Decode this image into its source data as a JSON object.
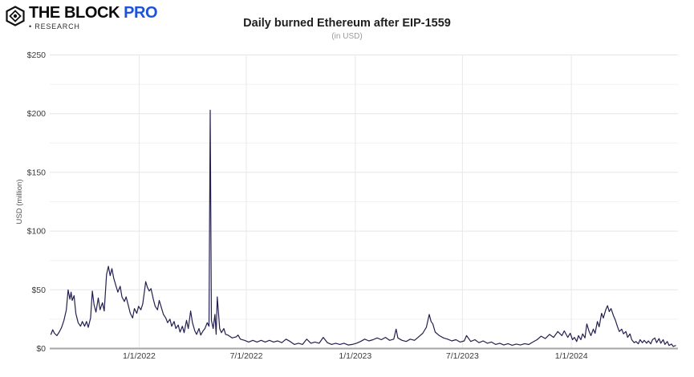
{
  "brand": {
    "name_part1": "THE BLOCK",
    "name_part2": "PRO",
    "tagline_bullet": "•",
    "tagline": "RESEARCH",
    "pro_color": "#1d53dc"
  },
  "chart": {
    "title": "Daily burned Ethereum after EIP-1559",
    "subtitle": "(in USD)"
  },
  "chart_data": {
    "type": "line",
    "title": "Daily burned Ethereum after EIP-1559",
    "subtitle": "(in USD)",
    "ylabel": "USD (million)",
    "ylim": [
      0,
      250
    ],
    "y_ticks": [
      "$0",
      "$50",
      "$100",
      "$150",
      "$200",
      "$250"
    ],
    "y_tick_values": [
      0,
      50,
      100,
      150,
      200,
      250
    ],
    "minor_grid_step": 25,
    "x_tick_labels": [
      "1/1/2022",
      "7/1/2022",
      "1/1/2023",
      "7/1/2023",
      "1/1/2024"
    ],
    "x_tick_dates": [
      "2022-01-01",
      "2022-07-01",
      "2023-01-01",
      "2023-07-01",
      "2024-01-01"
    ],
    "x_range": [
      "2021-08-03",
      "2024-06-29"
    ],
    "grid": true,
    "legend": "none",
    "line_color": "#23204f",
    "colors": {
      "major_grid": "#e5e5e5",
      "minor_grid": "#f1f1f1",
      "vertical_grid": "#e8e8e8",
      "axis_line": "#a6a6a6",
      "tick_label": "#3a3a3a",
      "axis_label": "#555555"
    },
    "series": [
      {
        "name": "Daily burned ETH (USD million)",
        "points": [
          [
            "2021-08-05",
            12
          ],
          [
            "2021-08-08",
            16
          ],
          [
            "2021-08-11",
            13
          ],
          [
            "2021-08-15",
            11
          ],
          [
            "2021-08-19",
            14
          ],
          [
            "2021-08-23",
            18
          ],
          [
            "2021-08-27",
            24
          ],
          [
            "2021-08-31",
            33
          ],
          [
            "2021-09-03",
            50
          ],
          [
            "2021-09-06",
            42
          ],
          [
            "2021-09-08",
            48
          ],
          [
            "2021-09-10",
            41
          ],
          [
            "2021-09-13",
            45
          ],
          [
            "2021-09-16",
            30
          ],
          [
            "2021-09-20",
            22
          ],
          [
            "2021-09-24",
            19
          ],
          [
            "2021-09-27",
            23
          ],
          [
            "2021-10-01",
            19
          ],
          [
            "2021-10-04",
            23
          ],
          [
            "2021-10-07",
            18
          ],
          [
            "2021-10-11",
            26
          ],
          [
            "2021-10-14",
            49
          ],
          [
            "2021-10-17",
            37
          ],
          [
            "2021-10-20",
            31
          ],
          [
            "2021-10-24",
            43
          ],
          [
            "2021-10-27",
            33
          ],
          [
            "2021-10-31",
            39
          ],
          [
            "2021-11-03",
            32
          ],
          [
            "2021-11-07",
            63
          ],
          [
            "2021-11-10",
            70
          ],
          [
            "2021-11-13",
            62
          ],
          [
            "2021-11-16",
            68
          ],
          [
            "2021-11-19",
            60
          ],
          [
            "2021-11-23",
            53
          ],
          [
            "2021-11-26",
            48
          ],
          [
            "2021-11-30",
            53
          ],
          [
            "2021-12-03",
            44
          ],
          [
            "2021-12-07",
            40
          ],
          [
            "2021-12-10",
            44
          ],
          [
            "2021-12-14",
            36
          ],
          [
            "2021-12-17",
            30
          ],
          [
            "2021-12-21",
            26
          ],
          [
            "2021-12-24",
            34
          ],
          [
            "2021-12-28",
            30
          ],
          [
            "2021-12-31",
            36
          ],
          [
            "2022-01-04",
            33
          ],
          [
            "2022-01-07",
            38
          ],
          [
            "2022-01-10",
            49
          ],
          [
            "2022-01-12",
            57
          ],
          [
            "2022-01-15",
            52
          ],
          [
            "2022-01-18",
            49
          ],
          [
            "2022-01-21",
            51
          ],
          [
            "2022-01-25",
            42
          ],
          [
            "2022-01-28",
            36
          ],
          [
            "2022-02-01",
            33
          ],
          [
            "2022-02-04",
            41
          ],
          [
            "2022-02-08",
            34
          ],
          [
            "2022-02-11",
            29
          ],
          [
            "2022-02-15",
            26
          ],
          [
            "2022-02-18",
            22
          ],
          [
            "2022-02-22",
            25
          ],
          [
            "2022-02-25",
            19
          ],
          [
            "2022-03-01",
            23
          ],
          [
            "2022-03-04",
            17
          ],
          [
            "2022-03-08",
            20
          ],
          [
            "2022-03-11",
            14
          ],
          [
            "2022-03-15",
            19
          ],
          [
            "2022-03-18",
            13.5
          ],
          [
            "2022-03-22",
            24
          ],
          [
            "2022-03-25",
            17
          ],
          [
            "2022-03-29",
            32
          ],
          [
            "2022-04-01",
            22
          ],
          [
            "2022-04-05",
            15
          ],
          [
            "2022-04-08",
            12
          ],
          [
            "2022-04-12",
            17
          ],
          [
            "2022-04-15",
            11.5
          ],
          [
            "2022-04-19",
            15
          ],
          [
            "2022-04-22",
            17
          ],
          [
            "2022-04-26",
            22
          ],
          [
            "2022-04-29",
            19
          ],
          [
            "2022-05-01",
            203
          ],
          [
            "2022-05-03",
            24
          ],
          [
            "2022-05-06",
            17
          ],
          [
            "2022-05-09",
            29
          ],
          [
            "2022-05-11",
            12
          ],
          [
            "2022-05-13",
            44
          ],
          [
            "2022-05-17",
            17
          ],
          [
            "2022-05-20",
            13.5
          ],
          [
            "2022-05-24",
            17
          ],
          [
            "2022-05-27",
            12
          ],
          [
            "2022-05-31",
            11.5
          ],
          [
            "2022-06-07",
            9
          ],
          [
            "2022-06-14",
            10
          ],
          [
            "2022-06-17",
            11.5
          ],
          [
            "2022-06-21",
            8
          ],
          [
            "2022-06-28",
            7
          ],
          [
            "2022-07-05",
            5.5
          ],
          [
            "2022-07-12",
            7
          ],
          [
            "2022-07-19",
            5.5
          ],
          [
            "2022-07-26",
            7
          ],
          [
            "2022-08-02",
            5.5
          ],
          [
            "2022-08-09",
            7
          ],
          [
            "2022-08-16",
            5.5
          ],
          [
            "2022-08-23",
            6.5
          ],
          [
            "2022-08-30",
            5
          ],
          [
            "2022-09-06",
            8
          ],
          [
            "2022-09-13",
            6
          ],
          [
            "2022-09-20",
            3.5
          ],
          [
            "2022-09-27",
            4.5
          ],
          [
            "2022-10-04",
            3.5
          ],
          [
            "2022-10-11",
            8
          ],
          [
            "2022-10-18",
            4.5
          ],
          [
            "2022-10-25",
            5.5
          ],
          [
            "2022-11-01",
            4.5
          ],
          [
            "2022-11-08",
            9.5
          ],
          [
            "2022-11-15",
            5
          ],
          [
            "2022-11-22",
            3.5
          ],
          [
            "2022-11-29",
            4.5
          ],
          [
            "2022-12-06",
            3.5
          ],
          [
            "2022-12-13",
            4.5
          ],
          [
            "2022-12-20",
            3
          ],
          [
            "2022-12-27",
            3.5
          ],
          [
            "2023-01-03",
            4.5
          ],
          [
            "2023-01-10",
            6
          ],
          [
            "2023-01-17",
            8
          ],
          [
            "2023-01-24",
            6.5
          ],
          [
            "2023-01-31",
            7.5
          ],
          [
            "2023-02-07",
            9
          ],
          [
            "2023-02-14",
            7.5
          ],
          [
            "2023-02-21",
            9.5
          ],
          [
            "2023-02-28",
            7
          ],
          [
            "2023-03-07",
            8
          ],
          [
            "2023-03-11",
            16.5
          ],
          [
            "2023-03-14",
            9
          ],
          [
            "2023-03-21",
            7
          ],
          [
            "2023-03-28",
            6
          ],
          [
            "2023-04-04",
            8
          ],
          [
            "2023-04-11",
            7
          ],
          [
            "2023-04-18",
            10
          ],
          [
            "2023-04-25",
            13
          ],
          [
            "2023-05-01",
            18
          ],
          [
            "2023-05-06",
            29
          ],
          [
            "2023-05-09",
            23
          ],
          [
            "2023-05-12",
            21
          ],
          [
            "2023-05-16",
            14
          ],
          [
            "2023-05-23",
            11
          ],
          [
            "2023-05-30",
            9
          ],
          [
            "2023-06-06",
            8
          ],
          [
            "2023-06-13",
            6.5
          ],
          [
            "2023-06-20",
            7.5
          ],
          [
            "2023-06-27",
            5.5
          ],
          [
            "2023-07-04",
            6.5
          ],
          [
            "2023-07-08",
            11
          ],
          [
            "2023-07-15",
            6
          ],
          [
            "2023-07-22",
            7.5
          ],
          [
            "2023-07-29",
            5
          ],
          [
            "2023-08-05",
            6.5
          ],
          [
            "2023-08-12",
            4.5
          ],
          [
            "2023-08-19",
            5.5
          ],
          [
            "2023-08-26",
            3.5
          ],
          [
            "2023-09-02",
            4.5
          ],
          [
            "2023-09-09",
            3
          ],
          [
            "2023-09-16",
            4.2
          ],
          [
            "2023-09-23",
            2.8
          ],
          [
            "2023-09-30",
            3.8
          ],
          [
            "2023-10-07",
            3
          ],
          [
            "2023-10-14",
            4.2
          ],
          [
            "2023-10-21",
            3.4
          ],
          [
            "2023-10-28",
            5.5
          ],
          [
            "2023-11-04",
            7.5
          ],
          [
            "2023-11-11",
            10.5
          ],
          [
            "2023-11-18",
            8.5
          ],
          [
            "2023-11-25",
            12
          ],
          [
            "2023-12-02",
            9.5
          ],
          [
            "2023-12-09",
            14.5
          ],
          [
            "2023-12-16",
            11
          ],
          [
            "2023-12-20",
            15
          ],
          [
            "2023-12-26",
            9.5
          ],
          [
            "2023-12-30",
            13
          ],
          [
            "2024-01-03",
            7.5
          ],
          [
            "2024-01-06",
            9.5
          ],
          [
            "2024-01-10",
            6
          ],
          [
            "2024-01-13",
            11
          ],
          [
            "2024-01-17",
            7.5
          ],
          [
            "2024-01-20",
            12.5
          ],
          [
            "2024-01-24",
            9
          ],
          [
            "2024-01-27",
            21
          ],
          [
            "2024-01-31",
            14.5
          ],
          [
            "2024-02-03",
            11
          ],
          [
            "2024-02-07",
            16.5
          ],
          [
            "2024-02-10",
            13
          ],
          [
            "2024-02-14",
            23
          ],
          [
            "2024-02-17",
            18.5
          ],
          [
            "2024-02-21",
            30
          ],
          [
            "2024-02-24",
            26
          ],
          [
            "2024-02-28",
            33
          ],
          [
            "2024-03-02",
            36.5
          ],
          [
            "2024-03-05",
            31.5
          ],
          [
            "2024-03-08",
            34
          ],
          [
            "2024-03-12",
            28
          ],
          [
            "2024-03-15",
            24.5
          ],
          [
            "2024-03-19",
            18.5
          ],
          [
            "2024-03-22",
            14.5
          ],
          [
            "2024-03-26",
            16.5
          ],
          [
            "2024-03-29",
            12.5
          ],
          [
            "2024-04-02",
            14.5
          ],
          [
            "2024-04-05",
            9.5
          ],
          [
            "2024-04-09",
            12.5
          ],
          [
            "2024-04-12",
            7.5
          ],
          [
            "2024-04-16",
            5
          ],
          [
            "2024-04-19",
            6
          ],
          [
            "2024-04-23",
            4
          ],
          [
            "2024-04-26",
            7.5
          ],
          [
            "2024-04-30",
            5
          ],
          [
            "2024-05-03",
            7
          ],
          [
            "2024-05-07",
            4.5
          ],
          [
            "2024-05-10",
            6.5
          ],
          [
            "2024-05-14",
            4
          ],
          [
            "2024-05-17",
            7.5
          ],
          [
            "2024-05-21",
            9
          ],
          [
            "2024-05-24",
            5
          ],
          [
            "2024-05-28",
            8.5
          ],
          [
            "2024-05-31",
            4.5
          ],
          [
            "2024-06-04",
            7.5
          ],
          [
            "2024-06-07",
            3.5
          ],
          [
            "2024-06-11",
            6
          ],
          [
            "2024-06-14",
            2.5
          ],
          [
            "2024-06-18",
            3.8
          ],
          [
            "2024-06-21",
            1.8
          ],
          [
            "2024-06-25",
            2.5
          ]
        ]
      }
    ]
  }
}
